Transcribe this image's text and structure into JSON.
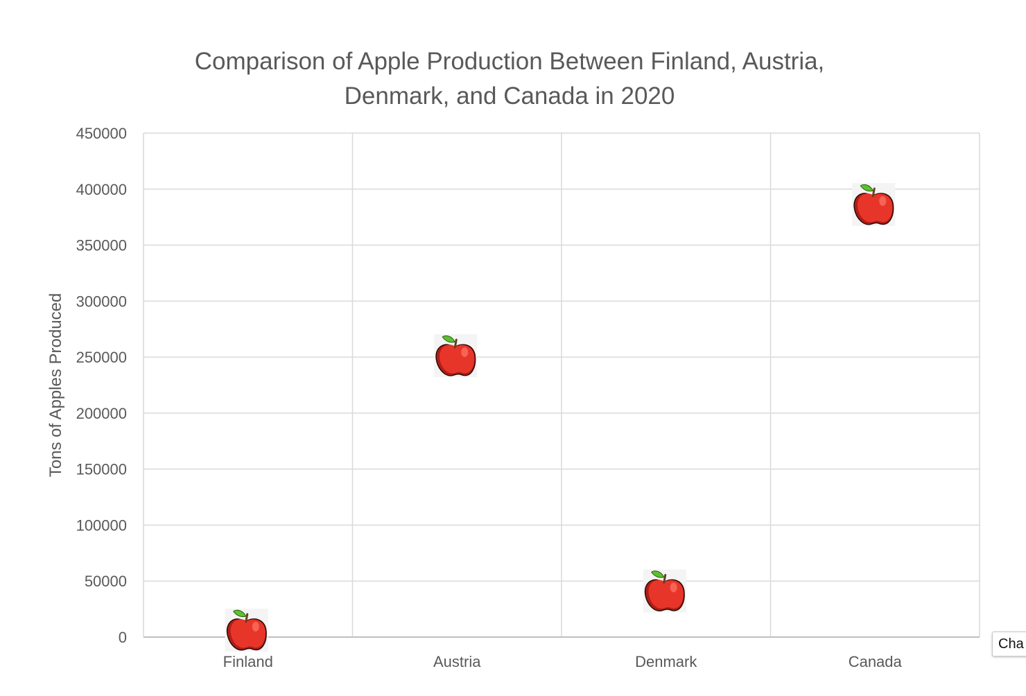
{
  "chart_data": {
    "type": "scatter",
    "title_lines": [
      "Comparison of Apple Production Between Finland, Austria,",
      "Denmark, and Canada in 2020"
    ],
    "xlabel": "",
    "ylabel": "Tons of Apples Produced",
    "categories": [
      "Finland",
      "Austria",
      "Denmark",
      "Canada"
    ],
    "values": [
      5000,
      250000,
      40000,
      385000
    ],
    "ylim": [
      0,
      450000
    ],
    "yticks": [
      "0",
      "50000",
      "100000",
      "150000",
      "200000",
      "250000",
      "300000",
      "350000",
      "400000",
      "450000"
    ],
    "marker": "apple-icon",
    "grid": true,
    "legend": "none"
  },
  "colors": {
    "grid": "#d9d9d9",
    "text": "#595959",
    "apple_body": "#e8352a",
    "apple_shadow": "#b01e16",
    "leaf": "#5cc12e",
    "stem": "#6b3e1f"
  },
  "tooltip": {
    "label": "Cha"
  }
}
